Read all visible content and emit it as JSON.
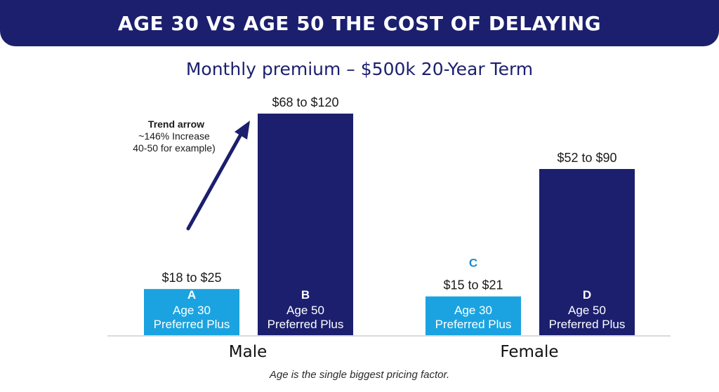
{
  "header": {
    "title": "AGE 30 VS AGE 50 THE COST OF DELAYING",
    "subtitle": "Monthly premium – $500k 20-Year Term"
  },
  "footer": {
    "caption": "Age is the single biggest pricing factor."
  },
  "colors": {
    "banner": "#1b1f6e",
    "age30": "#1aa3e0",
    "age50": "#1b1f6e",
    "letter_c": "#1a8fcf",
    "axis": "#cfcfcf"
  },
  "annotation": {
    "title": "Trend arrow",
    "lines": [
      "~146% Increase",
      "40-50 for example)"
    ]
  },
  "chart_data": {
    "type": "bar",
    "title": "Monthly premium – $500k 20-Year Term",
    "unit": "USD per month",
    "groups": [
      "Male",
      "Female"
    ],
    "ylim": [
      0,
      130
    ],
    "grid": false,
    "bars": [
      {
        "group": "Male",
        "letter": "A",
        "label_lines": [
          "Age 30",
          "Preferred Plus"
        ],
        "range_label": "$18 to $25",
        "low": 18,
        "high": 25,
        "color_key": "age30"
      },
      {
        "group": "Male",
        "letter": "B",
        "label_lines": [
          "Age 50",
          "Preferred Plus"
        ],
        "range_label": "$68 to $120",
        "low": 68,
        "high": 120,
        "color_key": "age50"
      },
      {
        "group": "Female",
        "letter": "C",
        "label_lines": [
          "Age 30",
          "Preferred Plus"
        ],
        "range_label": "$15 to $21",
        "low": 15,
        "high": 21,
        "color_key": "age30"
      },
      {
        "group": "Female",
        "letter": "D",
        "label_lines": [
          "Age 50",
          "Preferred Plus"
        ],
        "range_label": "$52 to $90",
        "low": 52,
        "high": 90,
        "color_key": "age50"
      }
    ]
  }
}
